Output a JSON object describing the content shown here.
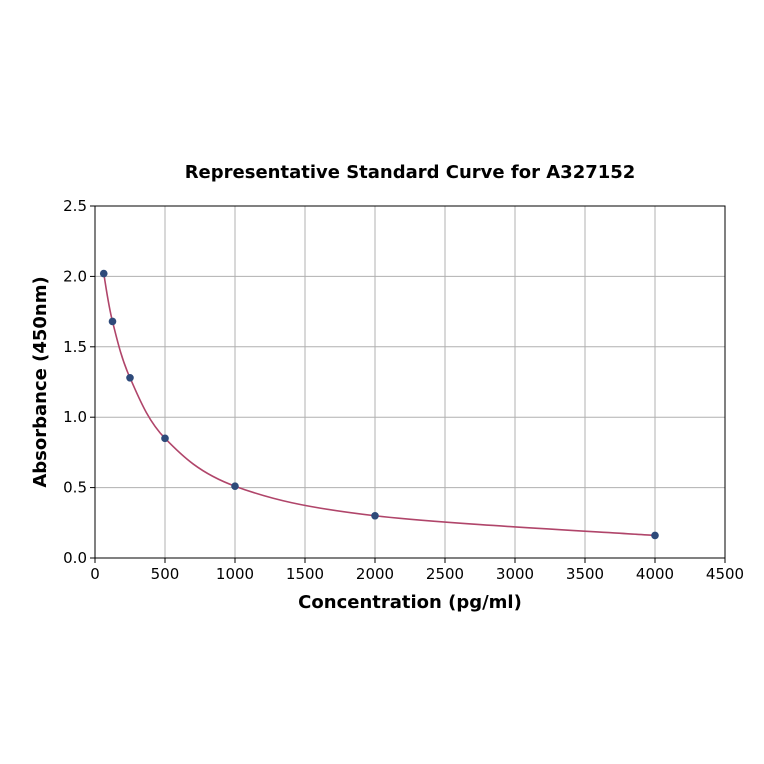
{
  "chart_data": {
    "type": "scatter",
    "title": "Representative Standard Curve for A327152",
    "xlabel": "Concentration (pg/ml)",
    "ylabel": "Absorbance (450nm)",
    "xlim": [
      0,
      4500
    ],
    "ylim": [
      0,
      2.5
    ],
    "xticks": [
      "0",
      "500",
      "1000",
      "1500",
      "2000",
      "2500",
      "3000",
      "3500",
      "4000",
      "4500"
    ],
    "yticks": [
      "0.0",
      "0.5",
      "1.0",
      "1.5",
      "2.0",
      "2.5"
    ],
    "grid": true,
    "points": [
      {
        "x": 62.5,
        "y": 2.02
      },
      {
        "x": 125,
        "y": 1.68
      },
      {
        "x": 250,
        "y": 1.28
      },
      {
        "x": 500,
        "y": 0.85
      },
      {
        "x": 1000,
        "y": 0.51
      },
      {
        "x": 2000,
        "y": 0.3
      },
      {
        "x": 4000,
        "y": 0.16
      }
    ],
    "fit_curve": true,
    "colors": {
      "points": "#2e4a7a",
      "curve": "#b0456a",
      "grid": "#b0b0b0"
    }
  }
}
